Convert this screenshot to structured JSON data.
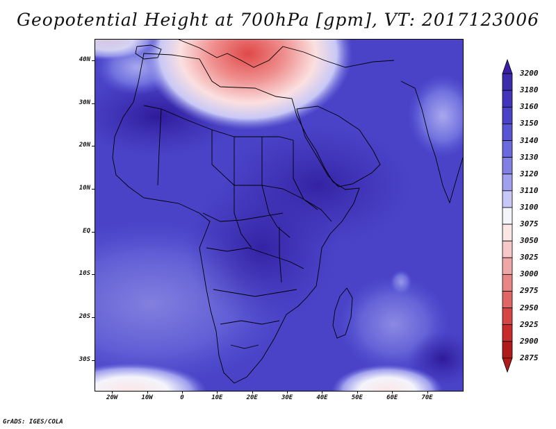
{
  "title": "Geopotential Height at 700hPa [gpm], VT: 2017123006",
  "credit": "GrADS: IGES/COLA",
  "map": {
    "lon_range": [
      -25,
      80
    ],
    "lat_range": [
      -37,
      45
    ],
    "lat_labels": [
      {
        "lat": 40,
        "text": "40N"
      },
      {
        "lat": 30,
        "text": "30N"
      },
      {
        "lat": 20,
        "text": "20N"
      },
      {
        "lat": 10,
        "text": "10N"
      },
      {
        "lat": 0,
        "text": "EQ"
      },
      {
        "lat": -10,
        "text": "10S"
      },
      {
        "lat": -20,
        "text": "20S"
      },
      {
        "lat": -30,
        "text": "30S"
      }
    ],
    "lon_labels": [
      {
        "lon": -20,
        "text": "20W"
      },
      {
        "lon": -10,
        "text": "10W"
      },
      {
        "lon": 0,
        "text": "0"
      },
      {
        "lon": 10,
        "text": "10E"
      },
      {
        "lon": 20,
        "text": "20E"
      },
      {
        "lon": 30,
        "text": "30E"
      },
      {
        "lon": 40,
        "text": "40E"
      },
      {
        "lon": 50,
        "text": "50E"
      },
      {
        "lon": 60,
        "text": "60E"
      },
      {
        "lon": 70,
        "text": "70E"
      }
    ]
  },
  "colorbar": {
    "levels": [
      "3200",
      "3180",
      "3160",
      "3150",
      "3140",
      "3130",
      "3120",
      "3110",
      "3100",
      "3075",
      "3050",
      "3025",
      "3000",
      "2975",
      "2950",
      "2925",
      "2900",
      "2875"
    ],
    "colors": [
      "#3a1ea6",
      "#3b2cae",
      "#4135bb",
      "#4a43c8",
      "#5755d4",
      "#6a6adc",
      "#8181e4",
      "#a0a0ee",
      "#c8c8f6",
      "#f4f4fb",
      "#fbe6e6",
      "#f6c8c8",
      "#efa6a6",
      "#e88585",
      "#e06565",
      "#d64545",
      "#c92a2a",
      "#b01a1a"
    ]
  }
}
